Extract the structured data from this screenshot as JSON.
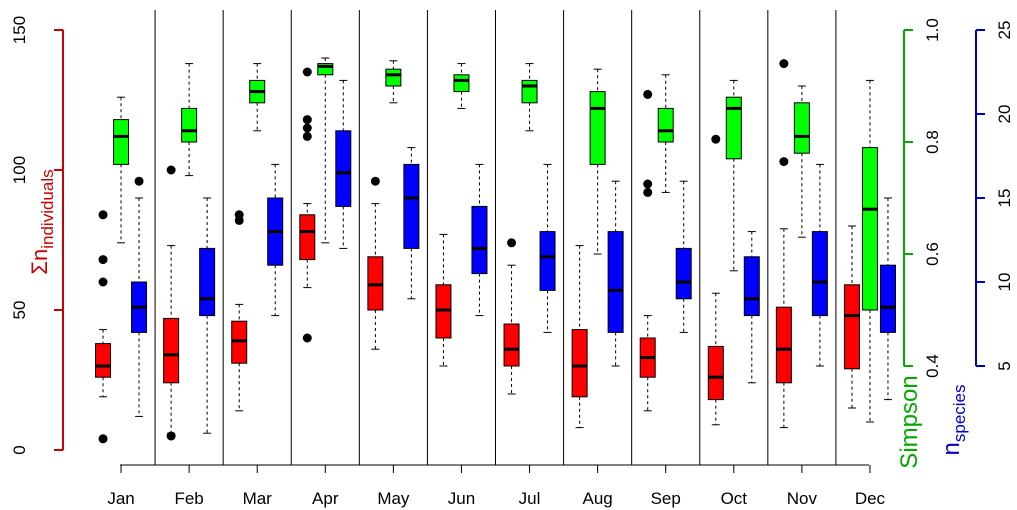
{
  "chart_data": {
    "type": "boxplot",
    "categories": [
      "Jan",
      "Feb",
      "Mar",
      "Apr",
      "May",
      "Jun",
      "Jul",
      "Aug",
      "Sep",
      "Oct",
      "Nov",
      "Dec"
    ],
    "axes": {
      "left": {
        "label": "Σn",
        "label_sub": "individuals",
        "color": "#cc0000",
        "range": [
          0,
          150
        ],
        "ticks": [
          "0",
          "50",
          "100",
          "150"
        ]
      },
      "right_simpson": {
        "label": "Simpson",
        "color": "#00aa00",
        "range": [
          0.4,
          1.0
        ],
        "ticks": [
          "0.4",
          "0.6",
          "0.8",
          "1.0"
        ]
      },
      "right_species": {
        "label": "n",
        "label_sub": "species",
        "color": "#0000cc",
        "range": [
          5,
          25
        ],
        "ticks": [
          "5",
          "10",
          "15",
          "20",
          "25"
        ]
      }
    },
    "grid": false,
    "series": [
      {
        "key": "individuals",
        "color": "#ff0000",
        "axis": "left",
        "boxes": [
          {
            "min": 19,
            "q1": 26,
            "median": 30,
            "q3": 38,
            "max": 43,
            "outliers": [
              4,
              60,
              68,
              84
            ]
          },
          {
            "min": 6,
            "q1": 24,
            "median": 34,
            "q3": 47,
            "max": 73,
            "outliers": [
              5,
              100
            ]
          },
          {
            "min": 14,
            "q1": 31,
            "median": 39,
            "q3": 46,
            "max": 52,
            "outliers": [
              82,
              84
            ]
          },
          {
            "min": 58,
            "q1": 68,
            "median": 78,
            "q3": 84,
            "max": 88,
            "outliers": [
              40,
              118,
              112,
              115,
              135
            ]
          },
          {
            "min": 36,
            "q1": 50,
            "median": 59,
            "q3": 69,
            "max": 88,
            "outliers": [
              96
            ]
          },
          {
            "min": 30,
            "q1": 40,
            "median": 50,
            "q3": 59,
            "max": 77,
            "outliers": []
          },
          {
            "min": 20,
            "q1": 30,
            "median": 36,
            "q3": 45,
            "max": 66,
            "outliers": [
              74
            ]
          },
          {
            "min": 8,
            "q1": 19,
            "median": 30,
            "q3": 43,
            "max": 73,
            "outliers": []
          },
          {
            "min": 14,
            "q1": 26,
            "median": 33,
            "q3": 40,
            "max": 48,
            "outliers": [
              92,
              95,
              127
            ]
          },
          {
            "min": 9,
            "q1": 18,
            "median": 26,
            "q3": 37,
            "max": 56,
            "outliers": [
              111
            ]
          },
          {
            "min": 8,
            "q1": 24,
            "median": 36,
            "q3": 51,
            "max": 79,
            "outliers": [
              103,
              138
            ]
          },
          {
            "min": 15,
            "q1": 29,
            "median": 48,
            "q3": 59,
            "max": 80,
            "outliers": []
          }
        ]
      },
      {
        "key": "simpson",
        "color": "#00ff00",
        "axis": "right_simpson",
        "boxes": [
          {
            "min": 0.62,
            "q1": 0.76,
            "median": 0.81,
            "q3": 0.84,
            "max": 0.88,
            "outliers": []
          },
          {
            "min": 0.74,
            "q1": 0.8,
            "median": 0.82,
            "q3": 0.86,
            "max": 0.94,
            "outliers": []
          },
          {
            "min": 0.82,
            "q1": 0.87,
            "median": 0.89,
            "q3": 0.91,
            "max": 0.94,
            "outliers": []
          },
          {
            "min": 0.62,
            "q1": 0.92,
            "median": 0.935,
            "q3": 0.94,
            "max": 0.95,
            "outliers": []
          },
          {
            "min": 0.87,
            "q1": 0.9,
            "median": 0.92,
            "q3": 0.93,
            "max": 0.945,
            "outliers": []
          },
          {
            "min": 0.86,
            "q1": 0.89,
            "median": 0.91,
            "q3": 0.92,
            "max": 0.94,
            "outliers": []
          },
          {
            "min": 0.82,
            "q1": 0.87,
            "median": 0.9,
            "q3": 0.91,
            "max": 0.94,
            "outliers": []
          },
          {
            "min": 0.6,
            "q1": 0.76,
            "median": 0.86,
            "q3": 0.89,
            "max": 0.93,
            "outliers": []
          },
          {
            "min": 0.71,
            "q1": 0.8,
            "median": 0.82,
            "q3": 0.86,
            "max": 0.92,
            "outliers": []
          },
          {
            "min": 0.57,
            "q1": 0.77,
            "median": 0.86,
            "q3": 0.88,
            "max": 0.91,
            "outliers": []
          },
          {
            "min": 0.63,
            "q1": 0.78,
            "median": 0.81,
            "q3": 0.87,
            "max": 0.9,
            "outliers": []
          },
          {
            "min": 0.3,
            "q1": 0.5,
            "median": 0.68,
            "q3": 0.79,
            "max": 0.91,
            "outliers": []
          }
        ]
      },
      {
        "key": "species",
        "color": "#0000ff",
        "axis": "right_species",
        "boxes": [
          {
            "min": 2,
            "q1": 7,
            "median": 8.5,
            "q3": 10,
            "max": 15,
            "outliers": [
              16
            ]
          },
          {
            "min": 1,
            "q1": 8,
            "median": 9,
            "q3": 12,
            "max": 15,
            "outliers": []
          },
          {
            "min": 8,
            "q1": 11,
            "median": 13,
            "q3": 15,
            "max": 17,
            "outliers": []
          },
          {
            "min": 12,
            "q1": 14.5,
            "median": 16.5,
            "q3": 19,
            "max": 22,
            "outliers": []
          },
          {
            "min": 9,
            "q1": 12,
            "median": 15,
            "q3": 17,
            "max": 18,
            "outliers": []
          },
          {
            "min": 8,
            "q1": 10.5,
            "median": 12,
            "q3": 14.5,
            "max": 17,
            "outliers": []
          },
          {
            "min": 7,
            "q1": 9.5,
            "median": 11.5,
            "q3": 13,
            "max": 17,
            "outliers": []
          },
          {
            "min": 5,
            "q1": 7,
            "median": 9.5,
            "q3": 13,
            "max": 16,
            "outliers": []
          },
          {
            "min": 7,
            "q1": 9,
            "median": 10,
            "q3": 12,
            "max": 16,
            "outliers": []
          },
          {
            "min": 4,
            "q1": 8,
            "median": 9,
            "q3": 11.5,
            "max": 13,
            "outliers": []
          },
          {
            "min": 5,
            "q1": 8,
            "median": 10,
            "q3": 13,
            "max": 17,
            "outliers": []
          },
          {
            "min": 3,
            "q1": 7,
            "median": 8.5,
            "q3": 11,
            "max": 15,
            "outliers": []
          }
        ]
      }
    ]
  }
}
